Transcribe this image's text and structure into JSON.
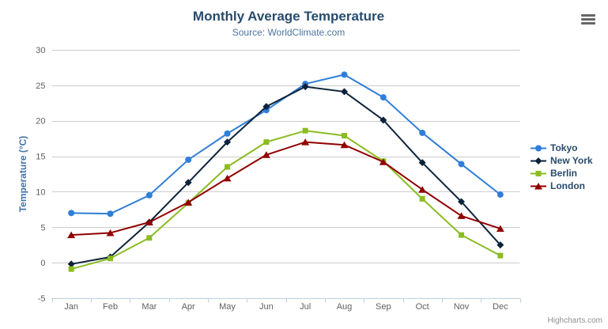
{
  "chart": {
    "title": "Monthly Average Temperature",
    "subtitle": "Source: WorldClimate.com",
    "credits_label": "Highcharts.com",
    "menu_icon": "hamburger-icon"
  },
  "chart_data": {
    "type": "line",
    "title": "Monthly Average Temperature",
    "subtitle": "Source: WorldClimate.com",
    "xlabel": "",
    "ylabel": "Temperature (°C)",
    "ylim": [
      -5,
      30
    ],
    "yticks": [
      -5,
      0,
      5,
      10,
      15,
      20,
      25,
      30
    ],
    "grid": true,
    "legend_position": "right",
    "categories": [
      "Jan",
      "Feb",
      "Mar",
      "Apr",
      "May",
      "Jun",
      "Jul",
      "Aug",
      "Sep",
      "Oct",
      "Nov",
      "Dec"
    ],
    "series": [
      {
        "name": "Tokyo",
        "color": "#2f7ed8",
        "marker": "circle",
        "values": [
          7.0,
          6.9,
          9.5,
          14.5,
          18.2,
          21.5,
          25.2,
          26.5,
          23.3,
          18.3,
          13.9,
          9.6
        ]
      },
      {
        "name": "New York",
        "color": "#0d233a",
        "marker": "diamond",
        "values": [
          -0.2,
          0.8,
          5.7,
          11.3,
          17.0,
          22.0,
          24.8,
          24.1,
          20.1,
          14.1,
          8.6,
          2.5
        ]
      },
      {
        "name": "Berlin",
        "color": "#8bbc21",
        "marker": "square",
        "values": [
          -0.9,
          0.6,
          3.5,
          8.4,
          13.5,
          17.0,
          18.6,
          17.9,
          14.3,
          9.0,
          3.9,
          1.0
        ]
      },
      {
        "name": "London",
        "color": "#910000",
        "marker": "triangle",
        "values": [
          3.9,
          4.2,
          5.7,
          8.5,
          11.9,
          15.2,
          17.0,
          16.6,
          14.2,
          10.3,
          6.6,
          4.8
        ]
      }
    ]
  },
  "palette": {
    "background": "#ffffff",
    "grid_line": "#cccccc",
    "axis_line": "#c0d0e0",
    "tick_label": "#606060",
    "title_text": "#274b6d",
    "subtitle_text": "#4d759e",
    "yaxis_title_text": "#4572a7",
    "legend_text": "#274b6d",
    "credits_text": "#909090",
    "menu_icon": "#666666"
  }
}
